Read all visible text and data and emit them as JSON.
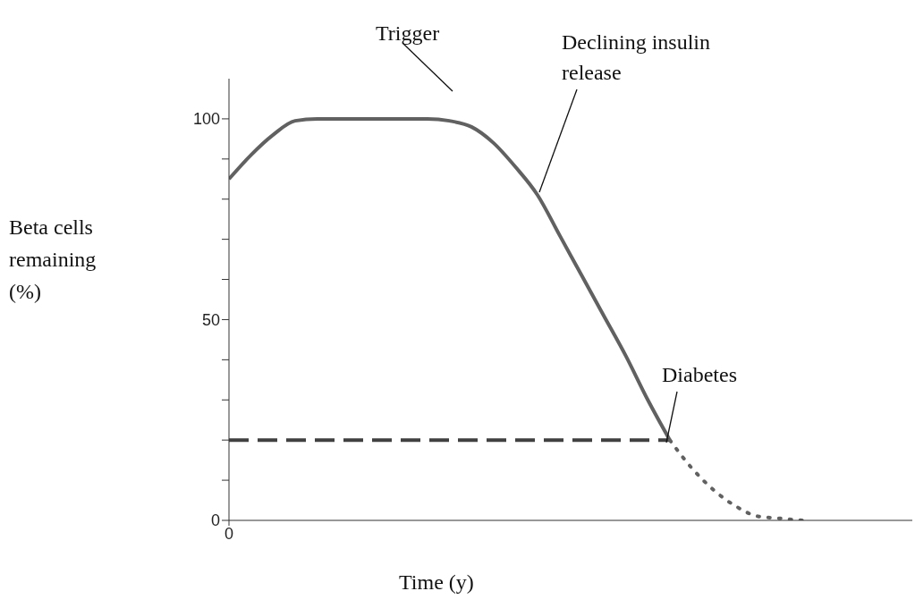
{
  "chart_data": {
    "type": "line",
    "categories": [
      "0",
      null,
      null,
      null,
      null,
      null,
      null,
      null,
      null,
      null,
      null,
      null,
      null,
      null,
      null,
      null,
      null,
      null,
      null,
      null,
      null,
      null,
      null,
      null,
      null,
      null,
      null,
      null,
      null,
      null,
      null,
      null
    ],
    "series": [
      {
        "color": "#616161",
        "line_style": "solid",
        "values": [
          85,
          91,
          96,
          99.5,
          100,
          100,
          100,
          100,
          100,
          100,
          99.5,
          98,
          94,
          88,
          81,
          71,
          61,
          51,
          41,
          30,
          20,
          null,
          null,
          null,
          null,
          null,
          null,
          null,
          null,
          null,
          null,
          null
        ]
      },
      {
        "color": "#404040",
        "line_style": "dashed",
        "values": [
          20,
          20,
          20,
          20,
          20,
          20,
          20,
          20,
          20,
          20,
          20,
          20,
          20,
          20,
          20,
          20,
          20,
          20,
          20,
          20,
          20,
          null,
          null,
          null,
          null,
          null,
          null,
          null,
          null,
          null,
          null,
          null
        ]
      },
      {
        "color": "#616161",
        "line_style": "dotted",
        "values": [
          null,
          null,
          null,
          null,
          null,
          null,
          null,
          null,
          null,
          null,
          null,
          null,
          null,
          null,
          null,
          null,
          null,
          null,
          null,
          null,
          20,
          13,
          7.5,
          3.5,
          1,
          0.5,
          0,
          null,
          null,
          null,
          null,
          null
        ]
      }
    ],
    "xlabel": "Time (y)",
    "ylabel": "Beta cells remaining (%)",
    "ylim": [
      0,
      110
    ],
    "yticks": [
      0,
      {
        "value": 10,
        "label": null
      },
      {
        "value": 20,
        "label": null
      },
      {
        "value": 30,
        "label": null
      },
      {
        "value": 40,
        "label": null
      },
      50,
      {
        "value": 60,
        "label": null
      },
      {
        "value": 70,
        "label": null
      },
      {
        "value": 80,
        "label": null
      },
      {
        "value": 90,
        "label": null
      },
      100
    ],
    "annotations": [
      "Trigger",
      "Declining insulin release",
      "Diabetes"
    ],
    "grid": false,
    "legend": false
  }
}
